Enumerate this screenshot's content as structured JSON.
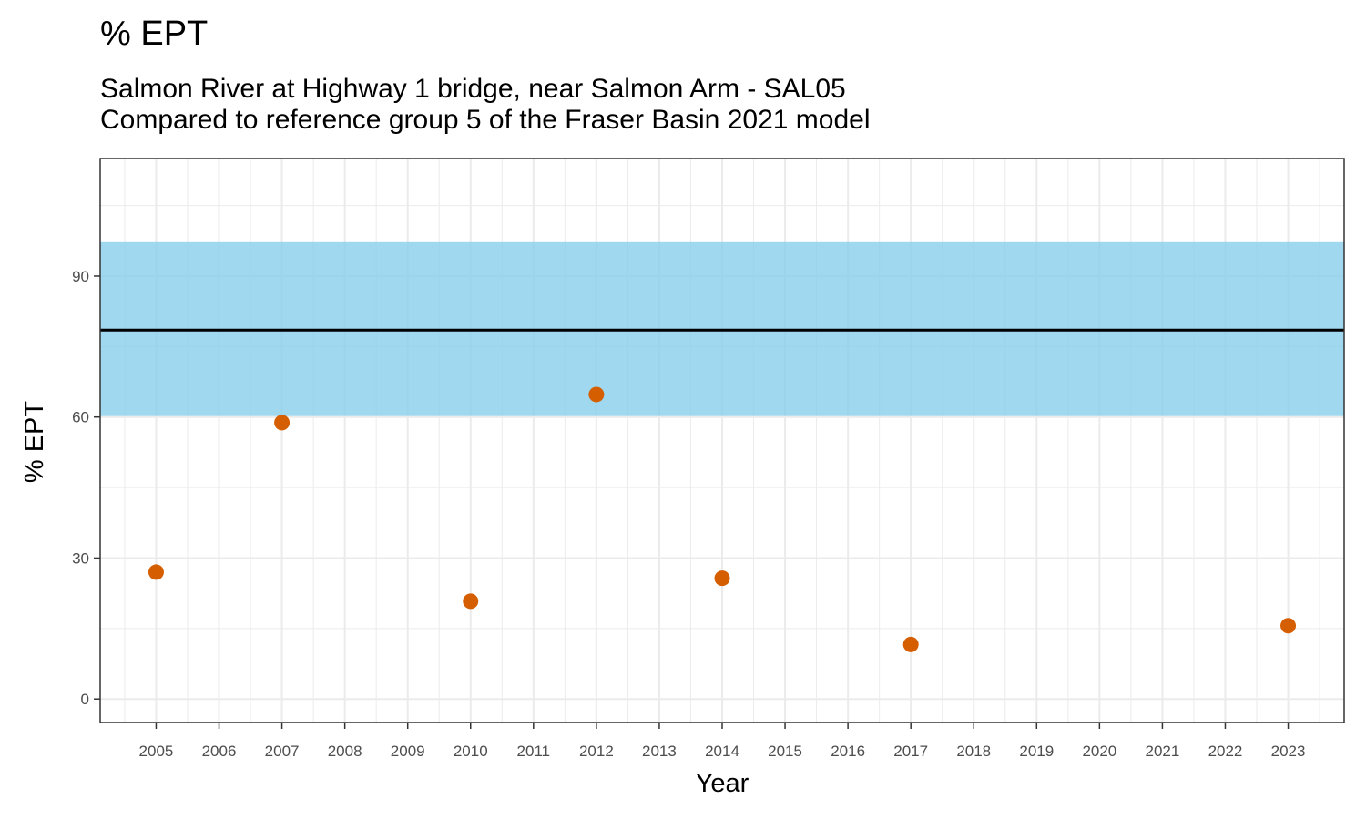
{
  "chart_data": {
    "type": "scatter",
    "title": "% EPT",
    "subtitle": [
      "Salmon River at Highway 1 bridge, near Salmon Arm - SAL05",
      "Compared to reference group 5 of the Fraser Basin 2021 model"
    ],
    "xlabel": "Year",
    "ylabel": "% EPT",
    "x_ticks": [
      "2005",
      "2006",
      "2007",
      "2008",
      "2009",
      "2010",
      "2011",
      "2012",
      "2013",
      "2014",
      "2015",
      "2016",
      "2017",
      "2018",
      "2019",
      "2020",
      "2021",
      "2022",
      "2023"
    ],
    "y_ticks": [
      0,
      30,
      60,
      90
    ],
    "xlim": [
      2004.11,
      2023.89
    ],
    "ylim": [
      -5,
      115
    ],
    "grid": true,
    "reference": {
      "mean": 78.5,
      "band": [
        60.2,
        97.2
      ],
      "band_color": "#87ceeb",
      "line_color": "#000000"
    },
    "series": [
      {
        "color": "#d55e00",
        "points": [
          {
            "x": 2005,
            "y": 27.0
          },
          {
            "x": 2007,
            "y": 58.8
          },
          {
            "x": 2010,
            "y": 20.8
          },
          {
            "x": 2012,
            "y": 64.8
          },
          {
            "x": 2014,
            "y": 25.7
          },
          {
            "x": 2017,
            "y": 11.6
          },
          {
            "x": 2023,
            "y": 15.6
          }
        ]
      }
    ]
  }
}
